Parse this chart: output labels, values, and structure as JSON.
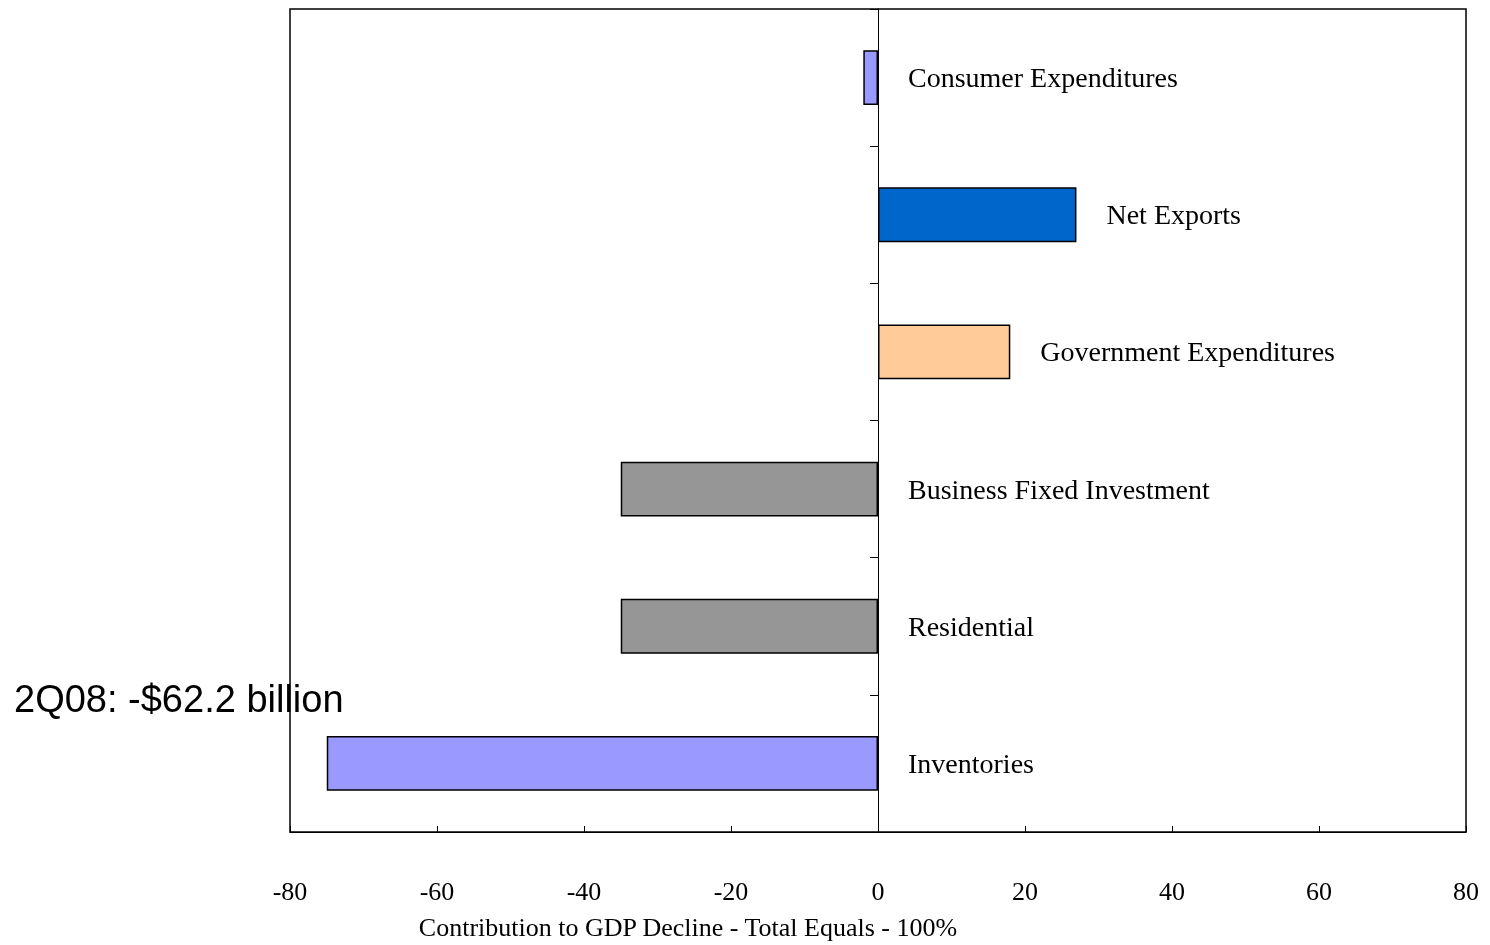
{
  "chart_data": {
    "type": "bar",
    "orientation": "horizontal",
    "xlabel": "Contribution to GDP Decline - Total Equals - 100%",
    "categories": [
      "Consumer Expenditures",
      "Net Exports",
      "Government Expenditures",
      "Business Fixed Investment",
      "Residential",
      "Inventories"
    ],
    "values": [
      -2,
      27,
      18,
      -35,
      -35,
      -75
    ],
    "colors": [
      "#9999ff",
      "#0066cc",
      "#ffcc99",
      "#969696",
      "#969696",
      "#9999ff"
    ],
    "xlim": [
      -80,
      80
    ],
    "xticks": [
      -80,
      -60,
      -40,
      -20,
      0,
      20,
      40,
      60,
      80
    ],
    "tick_labels": "x",
    "grid": false,
    "annotations": [
      "2Q08: -$62.2 billion"
    ]
  }
}
